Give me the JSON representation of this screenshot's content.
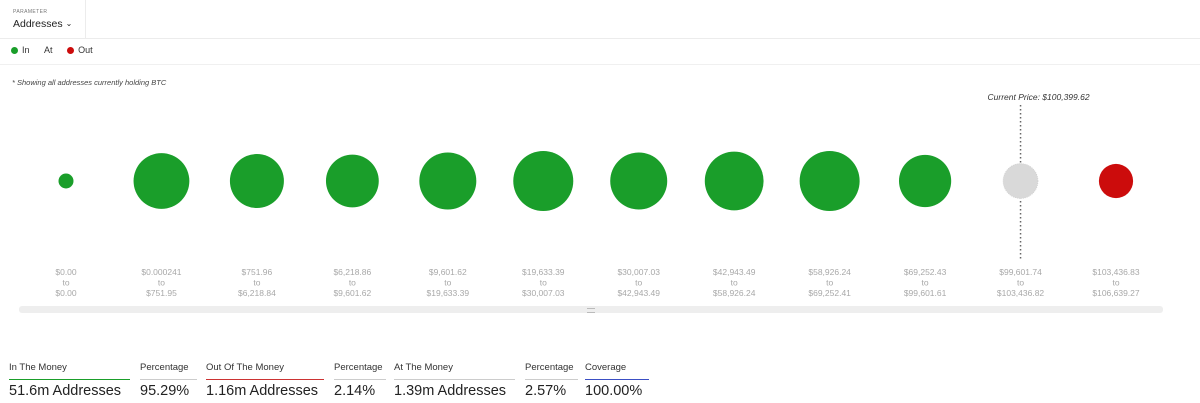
{
  "parameter": {
    "label": "PARAMETER",
    "value": "Addresses"
  },
  "legend": [
    {
      "label": "In",
      "color": "#1a9e2a"
    },
    {
      "label": "At",
      "color": ""
    },
    {
      "label": "Out",
      "color": "#cc0c0c"
    }
  ],
  "note": "* Showing all addresses currently holding BTC",
  "colors": {
    "in": "#1a9e2a",
    "at": "#d9d9d9",
    "out": "#cc0c0c",
    "coverage": "#3b4fc4"
  },
  "chart_data": {
    "type": "bubble",
    "annotation": "Current Price: $100,399.62",
    "bubbles": [
      {
        "status": "in",
        "from": "$0.00",
        "to": "$0.00",
        "relative_size": 0.25
      },
      {
        "status": "in",
        "from": "$0.000241",
        "to": "$751.95",
        "relative_size": 0.93
      },
      {
        "status": "in",
        "from": "$751.96",
        "to": "$6,218.84",
        "relative_size": 0.9
      },
      {
        "status": "in",
        "from": "$6,218.86",
        "to": "$9,601.62",
        "relative_size": 0.88
      },
      {
        "status": "in",
        "from": "$9,601.62",
        "to": "$19,633.39",
        "relative_size": 0.95
      },
      {
        "status": "in",
        "from": "$19,633.39",
        "to": "$30,007.03",
        "relative_size": 1.0
      },
      {
        "status": "in",
        "from": "$30,007.03",
        "to": "$42,943.49",
        "relative_size": 0.95
      },
      {
        "status": "in",
        "from": "$42,943.49",
        "to": "$58,926.24",
        "relative_size": 0.98
      },
      {
        "status": "in",
        "from": "$58,926.24",
        "to": "$69,252.41",
        "relative_size": 1.0
      },
      {
        "status": "in",
        "from": "$69,252.43",
        "to": "$99,601.61",
        "relative_size": 0.87
      },
      {
        "status": "at",
        "from": "$99,601.74",
        "to": "$103,436.82",
        "relative_size": 0.58
      },
      {
        "status": "out",
        "from": "$103,436.83",
        "to": "$106,639.27",
        "relative_size": 0.57
      }
    ],
    "connector": "to"
  },
  "stats": [
    {
      "label": "In The Money",
      "value": "51.6m Addresses",
      "color": "#1a9e2a"
    },
    {
      "label": "Percentage",
      "value": "95.29%",
      "color": "#cccccc"
    },
    {
      "label": "Out Of The Money",
      "value": "1.16m Addresses",
      "color": "#cc3333"
    },
    {
      "label": "Percentage",
      "value": "2.14%",
      "color": "#cccccc"
    },
    {
      "label": "At The Money",
      "value": "1.39m Addresses",
      "color": "#cccccc"
    },
    {
      "label": "Percentage",
      "value": "2.57%",
      "color": "#cccccc"
    },
    {
      "label": "Coverage",
      "value": "100.00%",
      "color": "#3b4fc4"
    }
  ]
}
